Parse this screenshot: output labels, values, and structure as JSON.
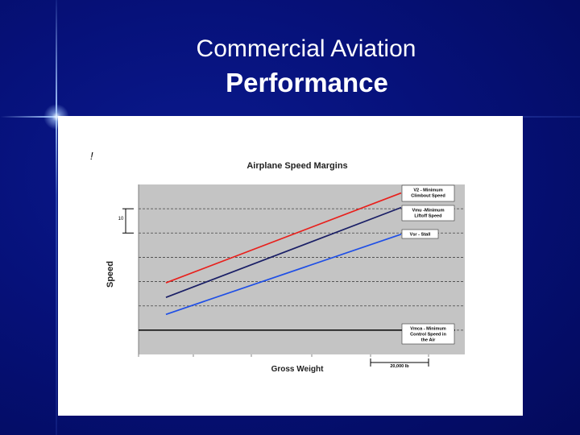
{
  "slide": {
    "title": "Commercial Aviation",
    "subtitle": "Performance"
  },
  "colors": {
    "background": "#06117a",
    "plot_area": "#c4c4c4",
    "v2": "#e8201c",
    "vmu": "#1a1f66",
    "vsr": "#1f4fe6",
    "vmca": "#111111"
  },
  "chart_data": {
    "type": "line",
    "corner_mark": "!",
    "title": "Airplane Speed Margins",
    "xlabel": "Gross Weight",
    "ylabel": "Speed",
    "xlim": [
      0,
      100
    ],
    "ylim": [
      0,
      70
    ],
    "grid": true,
    "scale_marks": {
      "y_interval_label": "10",
      "y_interval": 10,
      "x_interval_label": "20,000 lb",
      "x_interval": 20000
    },
    "series": [
      {
        "name": "V2 - Minimum Climbout Speed",
        "color": "#e8201c",
        "x": [
          0,
          100
        ],
        "y": [
          29.5,
          66.5
        ]
      },
      {
        "name": "Vmu -Minimum Liftoff Speed",
        "color": "#1a1f66",
        "x": [
          0,
          100
        ],
        "y": [
          23.5,
          60.5
        ]
      },
      {
        "name": "Vsr - Stall",
        "color": "#1f4fe6",
        "x": [
          0,
          100
        ],
        "y": [
          16.5,
          49.5
        ]
      },
      {
        "name": "Vmca - Minimum Control Speed in the Air",
        "color": "#111111",
        "x": [
          0,
          100
        ],
        "y": [
          10,
          10
        ]
      }
    ]
  }
}
